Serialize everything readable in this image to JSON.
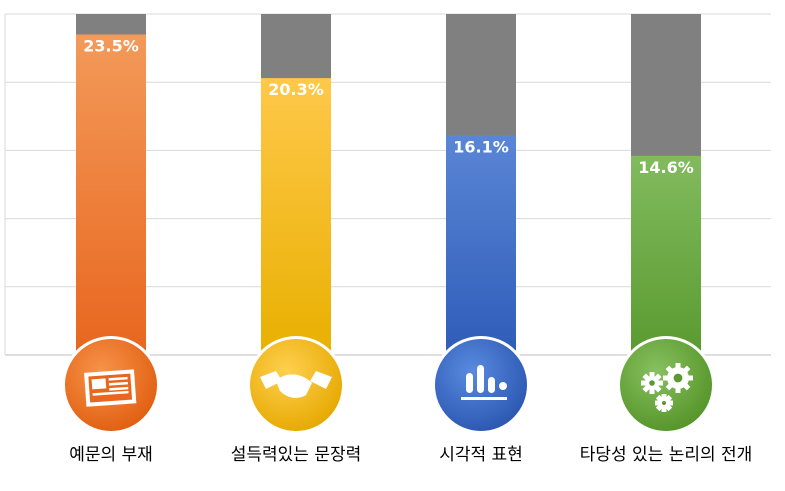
{
  "chart_data": {
    "type": "bar",
    "categories": [
      "예문의 부재",
      "설득력있는 문장력",
      "시각적 표현",
      "타당성 있는 논리의 전개"
    ],
    "values": [
      23.5,
      20.3,
      16.1,
      14.6
    ],
    "value_labels": [
      "23.5%",
      "20.3%",
      "16.1%",
      "14.6%"
    ],
    "ylim": [
      0,
      25
    ],
    "grid": true,
    "legend": "none",
    "background_bar_color": "#808080",
    "series_colors": [
      {
        "top": "#f39a5a",
        "bottom": "#e8661e"
      },
      {
        "top": "#ffc84a",
        "bottom": "#e8b000"
      },
      {
        "top": "#5b86d6",
        "bottom": "#2e5cb8"
      },
      {
        "top": "#82bb5e",
        "bottom": "#5a9a30"
      }
    ],
    "icons": [
      "newspaper-icon",
      "handshake-icon",
      "bar-chart-icon",
      "gears-icon"
    ]
  }
}
